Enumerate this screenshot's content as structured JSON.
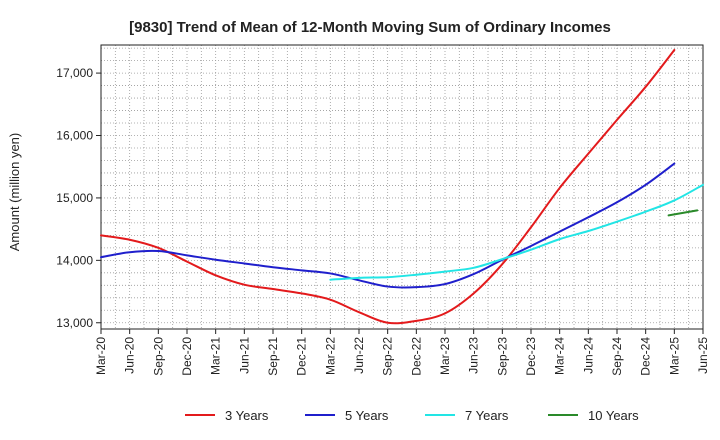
{
  "chart_data": {
    "type": "line",
    "title": "[9830]  Trend of Mean of 12-Month Moving Sum of Ordinary Incomes",
    "xlabel": "",
    "ylabel": "Amount (million yen)",
    "ylim": [
      12900,
      17450
    ],
    "yticks": [
      13000,
      14000,
      15000,
      16000,
      17000
    ],
    "ytick_labels": [
      "13,000",
      "14,000",
      "15,000",
      "16,000",
      "17,000"
    ],
    "x_tick_labels": [
      "Mar-20",
      "Jun-20",
      "Sep-20",
      "Dec-20",
      "Mar-21",
      "Jun-21",
      "Sep-21",
      "Dec-21",
      "Mar-22",
      "Jun-22",
      "Sep-22",
      "Dec-22",
      "Mar-23",
      "Jun-23",
      "Sep-23",
      "Dec-23",
      "Mar-24",
      "Jun-24",
      "Sep-24",
      "Dec-24",
      "Mar-25",
      "Jun-25"
    ],
    "grid": true,
    "legend_position": "bottom",
    "series": [
      {
        "name": "3 Years",
        "color": "#e31a1c",
        "start_index": 0,
        "values": [
          14400,
          14330,
          14200,
          13980,
          13760,
          13610,
          13540,
          13470,
          13370,
          13170,
          13000,
          13030,
          13150,
          13470,
          13940,
          14530,
          15160,
          15710,
          16250,
          16780,
          17370
        ]
      },
      {
        "name": "5 Years",
        "color": "#1f1fcc",
        "start_index": 0,
        "values": [
          14050,
          14130,
          14150,
          14080,
          14010,
          13950,
          13890,
          13840,
          13790,
          13680,
          13580,
          13570,
          13620,
          13780,
          14010,
          14230,
          14460,
          14690,
          14930,
          15210,
          15550
        ]
      },
      {
        "name": "7 Years",
        "color": "#22e5e5",
        "start_index": 8,
        "values": [
          13690,
          13720,
          13730,
          13770,
          13820,
          13880,
          14020,
          14170,
          14340,
          14470,
          14620,
          14780,
          14960,
          15210
        ]
      },
      {
        "name": "10 Years",
        "color": "#2a8a2a",
        "start_index": 19.8,
        "values": [
          14720,
          14800
        ]
      }
    ]
  }
}
